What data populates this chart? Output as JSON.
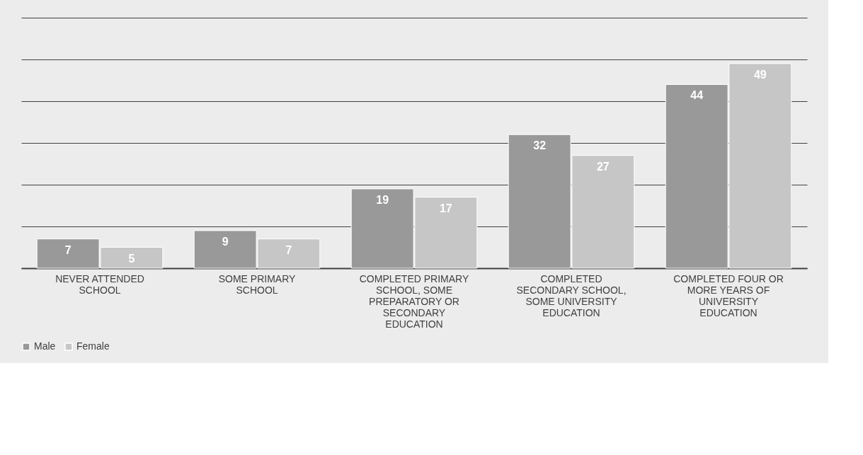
{
  "chart_data": {
    "type": "bar",
    "categories": [
      "NEVER ATTENDED SCHOOL",
      "SOME PRIMARY SCHOOL",
      "COMPLETED PRIMARY SCHOOL, SOME PREPARATORY OR SECONDARY EDUCATION",
      "COMPLETED SECONDARY SCHOOL, SOME UNIVERSITY EDUCATION",
      "COMPLETED FOUR OR MORE YEARS OF UNIVERSITY EDUCATION"
    ],
    "series": [
      {
        "name": "Male",
        "color": "#999999",
        "values": [
          7,
          9,
          19,
          32,
          44
        ]
      },
      {
        "name": "Female",
        "color": "#c6c6c6",
        "values": [
          5,
          7,
          17,
          27,
          49
        ]
      }
    ],
    "ylim": [
      0,
      60
    ],
    "yticks": [
      {
        "value": 0,
        "label": null
      },
      {
        "value": 10,
        "label": null
      },
      {
        "value": 20,
        "label": null
      },
      {
        "value": 30,
        "label": null
      },
      {
        "value": 40,
        "label": null
      },
      {
        "value": 50,
        "label": null
      },
      {
        "value": 60,
        "label": null
      }
    ],
    "tick_labels": "x",
    "grid": "y",
    "legend": "bottom",
    "data_labels": true
  }
}
